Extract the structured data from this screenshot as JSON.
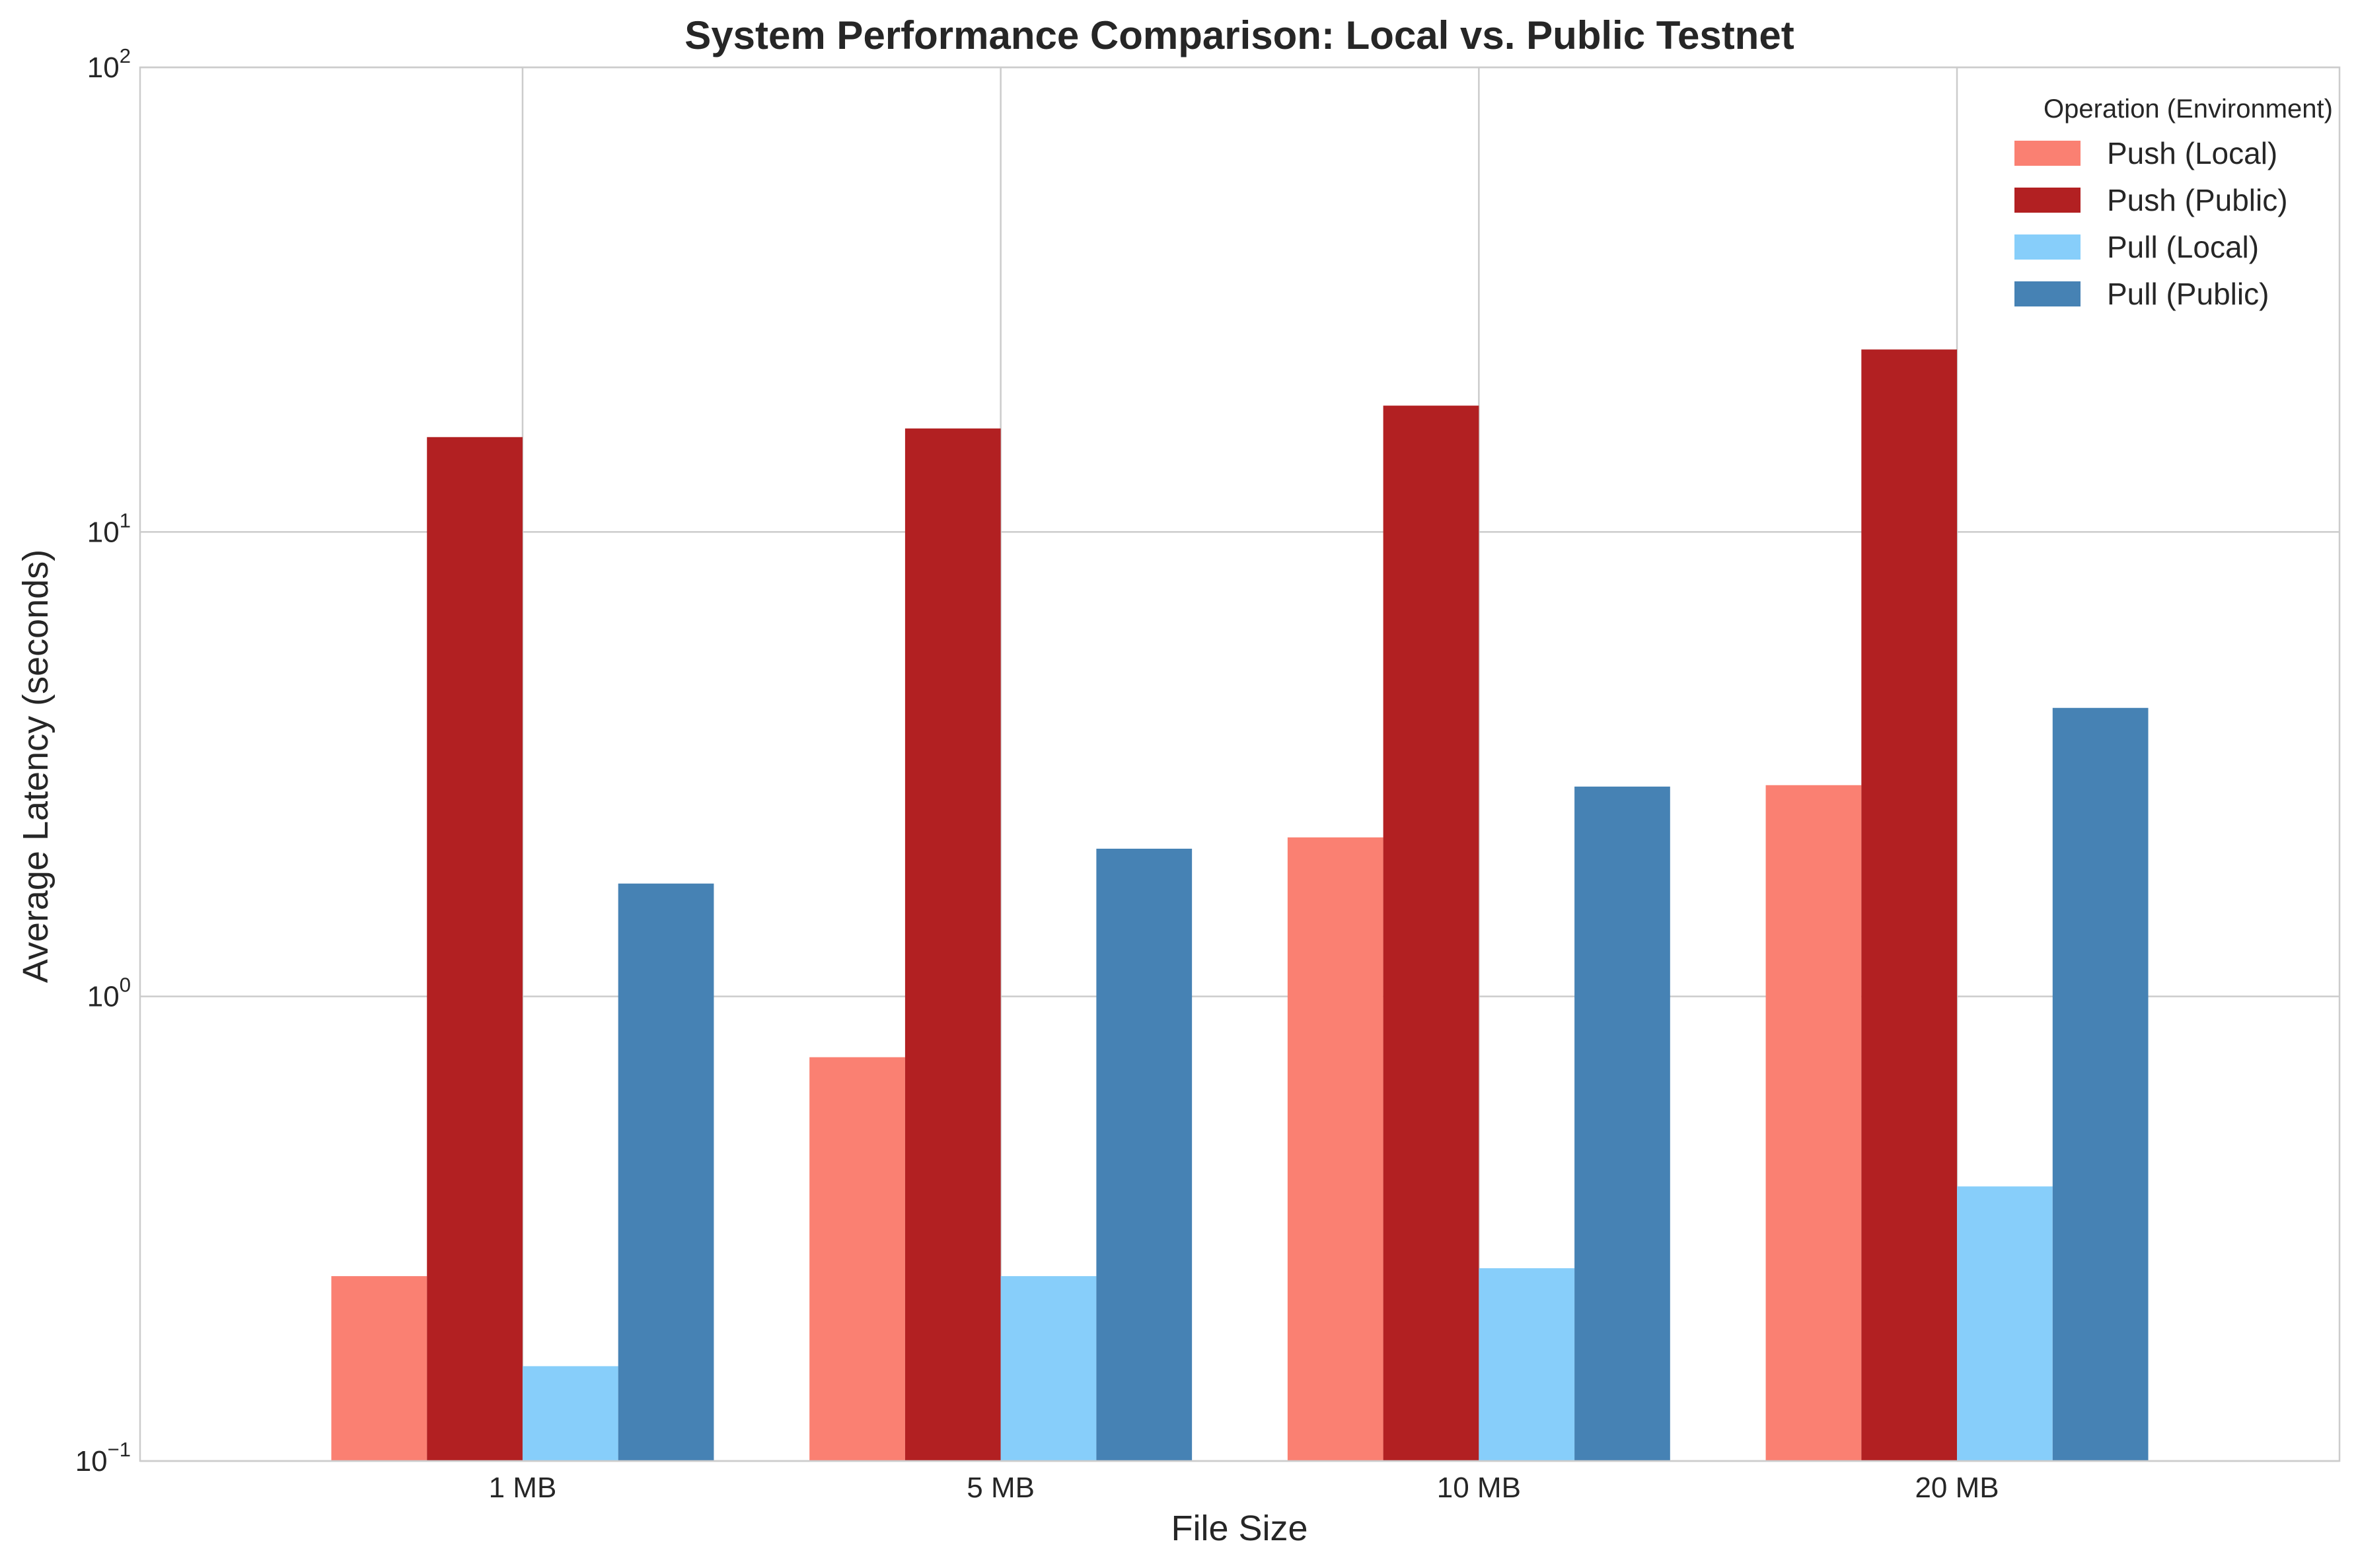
{
  "chart_data": {
    "type": "bar",
    "title": "System Performance Comparison: Local vs. Public Testnet",
    "xlabel": "File Size",
    "ylabel": "Average Latency (seconds)",
    "yscale": "log",
    "ylim": [
      0.1,
      100
    ],
    "grid": true,
    "categories": [
      "1 MB",
      "5 MB",
      "10 MB",
      "20 MB"
    ],
    "yticks": [
      {
        "value": 0.1,
        "base": "10",
        "exp": "−1"
      },
      {
        "value": 1,
        "base": "10",
        "exp": "0"
      },
      {
        "value": 10,
        "base": "10",
        "exp": "1"
      },
      {
        "value": 100,
        "base": "10",
        "exp": "2"
      }
    ],
    "legend": {
      "title": "Operation (Environment)",
      "placement": "top-right"
    },
    "series": [
      {
        "name": "Push (Local)",
        "color": "#fa8072",
        "values": [
          0.25,
          0.74,
          2.2,
          2.85
        ]
      },
      {
        "name": "Push (Public)",
        "color": "#b22022",
        "values": [
          16.0,
          16.7,
          18.7,
          24.7
        ]
      },
      {
        "name": "Pull (Local)",
        "color": "#87cefa",
        "values": [
          0.16,
          0.25,
          0.26,
          0.39
        ]
      },
      {
        "name": "Pull (Public)",
        "color": "#4682b4",
        "values": [
          1.75,
          2.08,
          2.83,
          4.18
        ]
      }
    ]
  }
}
